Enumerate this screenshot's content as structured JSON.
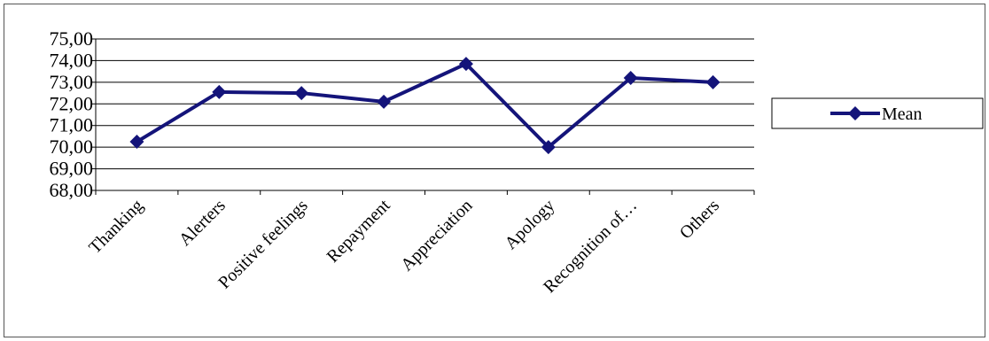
{
  "chart_data": {
    "type": "line",
    "categories": [
      "Thanking",
      "Alerters",
      "Positive feelings",
      "Repayment",
      "Appreciation",
      "Apology",
      "Recognition of…",
      "Others"
    ],
    "series": [
      {
        "name": "Mean",
        "values": [
          70.25,
          72.55,
          72.5,
          72.1,
          73.85,
          70.0,
          73.2,
          73.0
        ]
      }
    ],
    "ylim": [
      68,
      75
    ],
    "yticks": [
      "68,00",
      "69,00",
      "70,00",
      "71,00",
      "72,00",
      "73,00",
      "74,00",
      "75,00"
    ],
    "grid": true,
    "legend": "right",
    "line_color": "#14147a",
    "title": "",
    "xlabel": "",
    "ylabel": ""
  }
}
